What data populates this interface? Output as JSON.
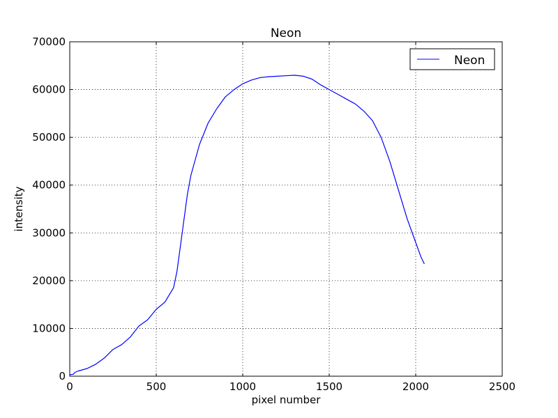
{
  "chart_data": {
    "type": "line",
    "title": "Neon",
    "xlabel": "pixel number",
    "ylabel": "intensity",
    "xlim": [
      0,
      2500
    ],
    "ylim": [
      0,
      70000
    ],
    "xticks": [
      0,
      500,
      1000,
      1500,
      2000,
      2500
    ],
    "yticks": [
      0,
      10000,
      20000,
      30000,
      40000,
      50000,
      60000,
      70000
    ],
    "grid": true,
    "legend_position": "top-right",
    "series": [
      {
        "name": "Neon",
        "color": "#0000ff",
        "x": [
          0,
          20,
          30,
          50,
          100,
          150,
          200,
          250,
          300,
          350,
          400,
          450,
          500,
          550,
          600,
          620,
          650,
          680,
          700,
          750,
          800,
          850,
          900,
          950,
          1000,
          1050,
          1100,
          1150,
          1200,
          1250,
          1300,
          1350,
          1400,
          1450,
          1500,
          1550,
          1600,
          1650,
          1700,
          1750,
          1800,
          1820,
          1850,
          1900,
          1950,
          2000,
          2030,
          2050
        ],
        "y": [
          300,
          400,
          800,
          1100,
          1600,
          2500,
          3800,
          5600,
          6600,
          8200,
          10500,
          11800,
          14000,
          15500,
          18500,
          22000,
          30000,
          38000,
          42000,
          48500,
          53000,
          56000,
          58500,
          60000,
          61200,
          62000,
          62500,
          62700,
          62800,
          62900,
          63000,
          62800,
          62200,
          61000,
          60000,
          59000,
          58000,
          57000,
          55500,
          53500,
          50000,
          48000,
          45000,
          39000,
          33000,
          28000,
          25000,
          23500
        ]
      }
    ]
  }
}
